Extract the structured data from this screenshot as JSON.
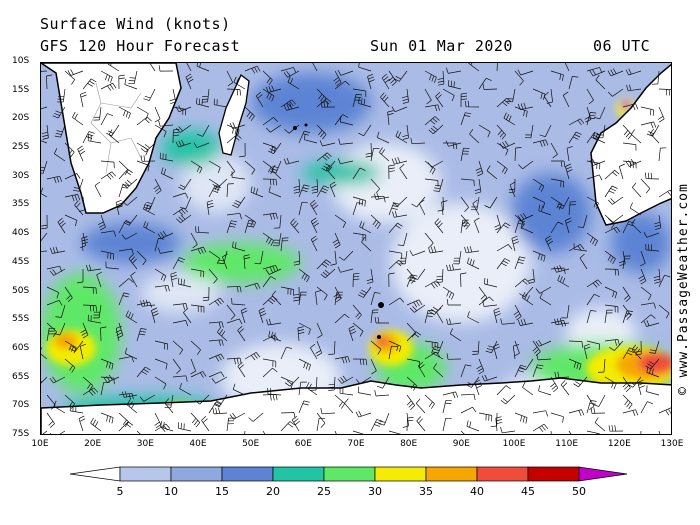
{
  "title": {
    "line1": "Surface Wind (knots)",
    "line2": "GFS 120 Hour Forecast",
    "date": "Sun 01 Mar 2020",
    "time": "06 UTC"
  },
  "credit": "© www.PassageWeather.com",
  "lat_labels": [
    "10S",
    "15S",
    "20S",
    "25S",
    "30S",
    "35S",
    "40S",
    "45S",
    "50S",
    "55S",
    "60S",
    "65S",
    "70S",
    "75S"
  ],
  "lon_labels": [
    "10E",
    "20E",
    "30E",
    "40E",
    "50E",
    "60E",
    "70E",
    "80E",
    "90E",
    "100E",
    "110E",
    "120E",
    "130E"
  ],
  "colorbar": {
    "labels": [
      "5",
      "10",
      "15",
      "20",
      "25",
      "30",
      "35",
      "40",
      "45",
      "50"
    ],
    "colors": [
      "#e9eef8",
      "#b7c7ec",
      "#8fa8e0",
      "#5d84d4",
      "#22c4a6",
      "#5fe868",
      "#f4ec04",
      "#f6a600",
      "#f04c3c",
      "#c40000",
      "#c100c8"
    ]
  },
  "colors": {
    "ocean_base": "#aabbe6",
    "land": "#ffffff",
    "coast": "#000000"
  }
}
